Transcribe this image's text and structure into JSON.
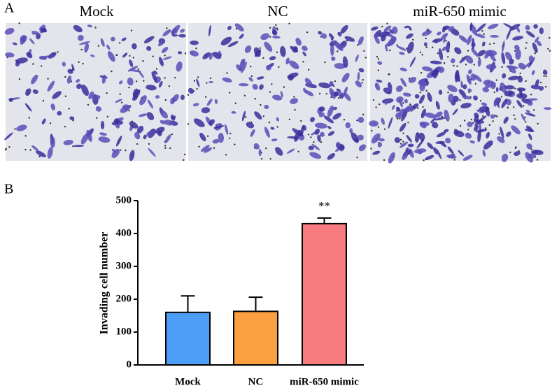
{
  "figure": {
    "panel_a": {
      "label": "A",
      "titles": [
        "Mock",
        "NC",
        "miR-650 mimic"
      ]
    },
    "panel_b": {
      "label": "B"
    }
  },
  "chart_data": {
    "type": "bar",
    "ylabel": "Invading cell number",
    "categories": [
      "Mock",
      "NC",
      "miR-650 mimic"
    ],
    "values": [
      160,
      163,
      430
    ],
    "errors": [
      50,
      43,
      17
    ],
    "colors": [
      "#4d9ef7",
      "#fba040",
      "#f77b7f"
    ],
    "ylim": [
      0,
      500
    ],
    "yticks": [
      0,
      100,
      200,
      300,
      400,
      500
    ],
    "annotations": [
      {
        "text": "**",
        "category": "miR-650 mimic"
      }
    ]
  }
}
